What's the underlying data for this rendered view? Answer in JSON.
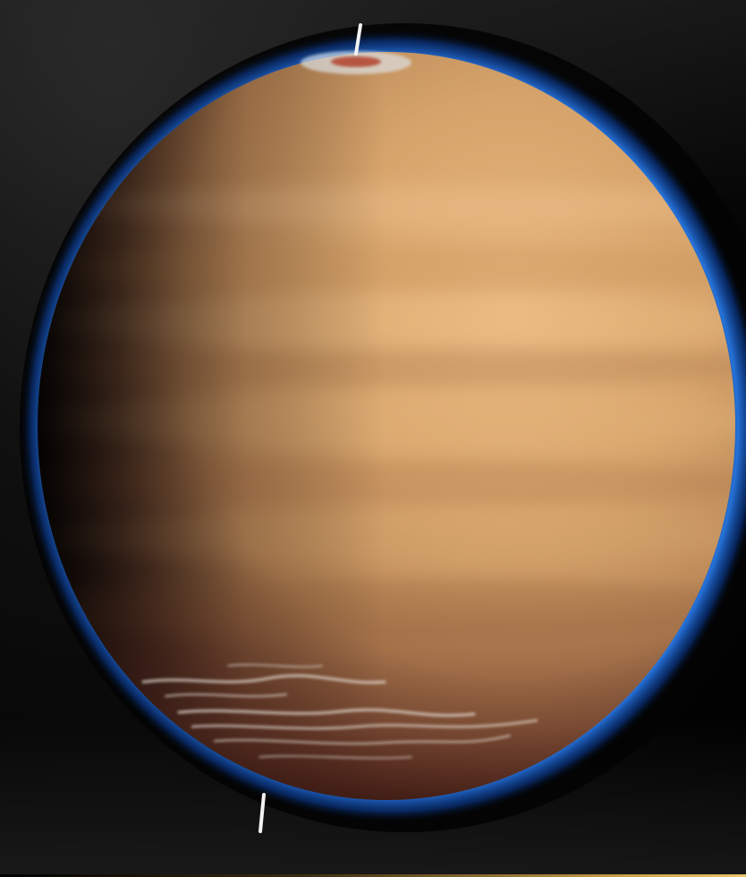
{
  "image": {
    "subject_icon": "planet-icon",
    "colors": {
      "background": "#000000",
      "atmosphere_glow": "#1f6fe0",
      "planet_light": "#e4b27a",
      "planet_mid": "#c99660",
      "planet_shadow": "#3a2218",
      "polar_vortex": "#b34a36",
      "bottom_accent": "#e9c46a"
    }
  }
}
